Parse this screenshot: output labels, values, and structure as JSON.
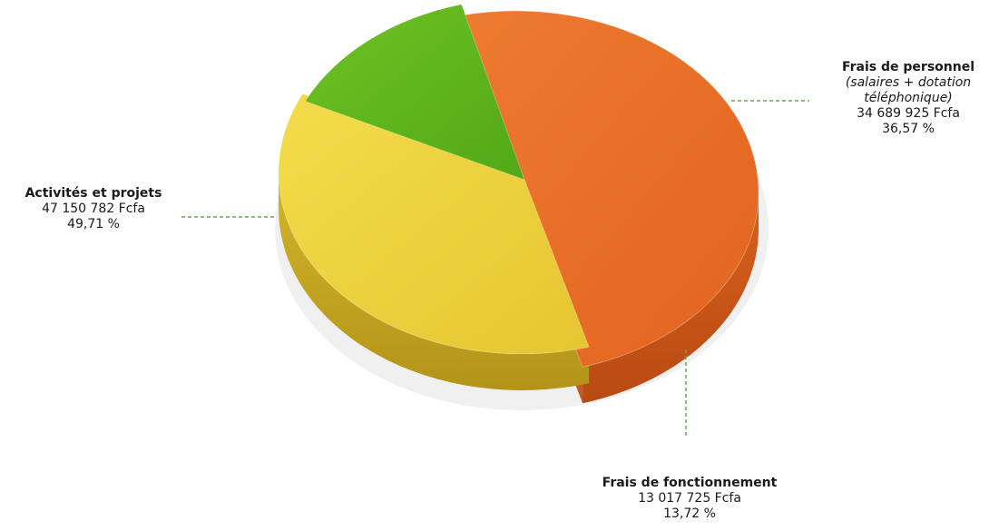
{
  "chart_data": {
    "type": "pie",
    "slices": [
      {
        "label": "Activités et projets",
        "value_text": "47 150 782 Fcfa",
        "percent": 49.71,
        "percent_text": "49,71 %",
        "color": "#E8702A"
      },
      {
        "label": "Frais de personnel",
        "note": "(salaires + dotation téléphonique)",
        "value_text": "34 689 925 Fcfa",
        "percent": 36.57,
        "percent_text": "36,57 %",
        "color": "#EFD23E"
      },
      {
        "label": "Frais de fonctionnement",
        "value_text": "13 017 725 Fcfa",
        "percent": 13.72,
        "percent_text": "13,72 %",
        "color": "#5DB21E"
      }
    ]
  },
  "colors": {
    "leader_line": "#6aa84f"
  }
}
